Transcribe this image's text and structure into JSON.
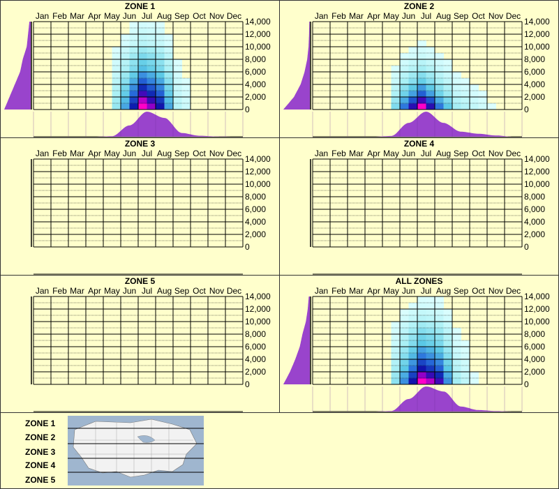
{
  "months": [
    "Jan",
    "Feb",
    "Mar",
    "Apr",
    "May",
    "Jun",
    "Jul",
    "Aug",
    "Sep",
    "Oct",
    "Nov",
    "Dec"
  ],
  "y_ticks": [
    "14,000",
    "12,000",
    "10,000",
    "8,000",
    "6,000",
    "4,000",
    "2,000",
    "0"
  ],
  "colors": {
    "background": "#ffffcc",
    "curve": "#9944cc",
    "grid": "#000000"
  },
  "chart_data": [
    {
      "type": "heatmap",
      "title": "ZONE 1",
      "ylim": [
        0,
        14000
      ],
      "month_profile": [
        0,
        0,
        0,
        0,
        0.02,
        0.45,
        1.0,
        0.75,
        0.15,
        0.04,
        0.01,
        0
      ],
      "elevation_profile": [
        1.0,
        0.8,
        0.6,
        0.4,
        0.3,
        0.15,
        0.1,
        0.05
      ],
      "active": true
    },
    {
      "type": "heatmap",
      "title": "ZONE 2",
      "ylim": [
        0,
        14000
      ],
      "month_profile": [
        0,
        0,
        0,
        0,
        0.03,
        0.55,
        1.0,
        0.55,
        0.2,
        0.12,
        0.05,
        0
      ],
      "elevation_profile": [
        1.0,
        0.6,
        0.35,
        0.2,
        0.1,
        0.05,
        0.03,
        0.02
      ],
      "active": true
    },
    {
      "type": "heatmap",
      "title": "ZONE 3",
      "ylim": [
        0,
        14000
      ],
      "active": false
    },
    {
      "type": "heatmap",
      "title": "ZONE 4",
      "ylim": [
        0,
        14000
      ],
      "active": false
    },
    {
      "type": "heatmap",
      "title": "ZONE 5",
      "ylim": [
        0,
        14000
      ],
      "active": false
    },
    {
      "type": "heatmap",
      "title": "ALL ZONES",
      "ylim": [
        0,
        14000
      ],
      "month_profile": [
        0,
        0,
        0,
        0,
        0.02,
        0.5,
        1.0,
        0.8,
        0.2,
        0.06,
        0.02,
        0
      ],
      "elevation_profile": [
        1.0,
        0.75,
        0.55,
        0.38,
        0.28,
        0.15,
        0.08,
        0.04
      ],
      "active": true
    }
  ],
  "legend": {
    "zones": [
      "ZONE 1",
      "ZONE 2",
      "ZONE 3",
      "ZONE 4",
      "ZONE 5"
    ]
  }
}
